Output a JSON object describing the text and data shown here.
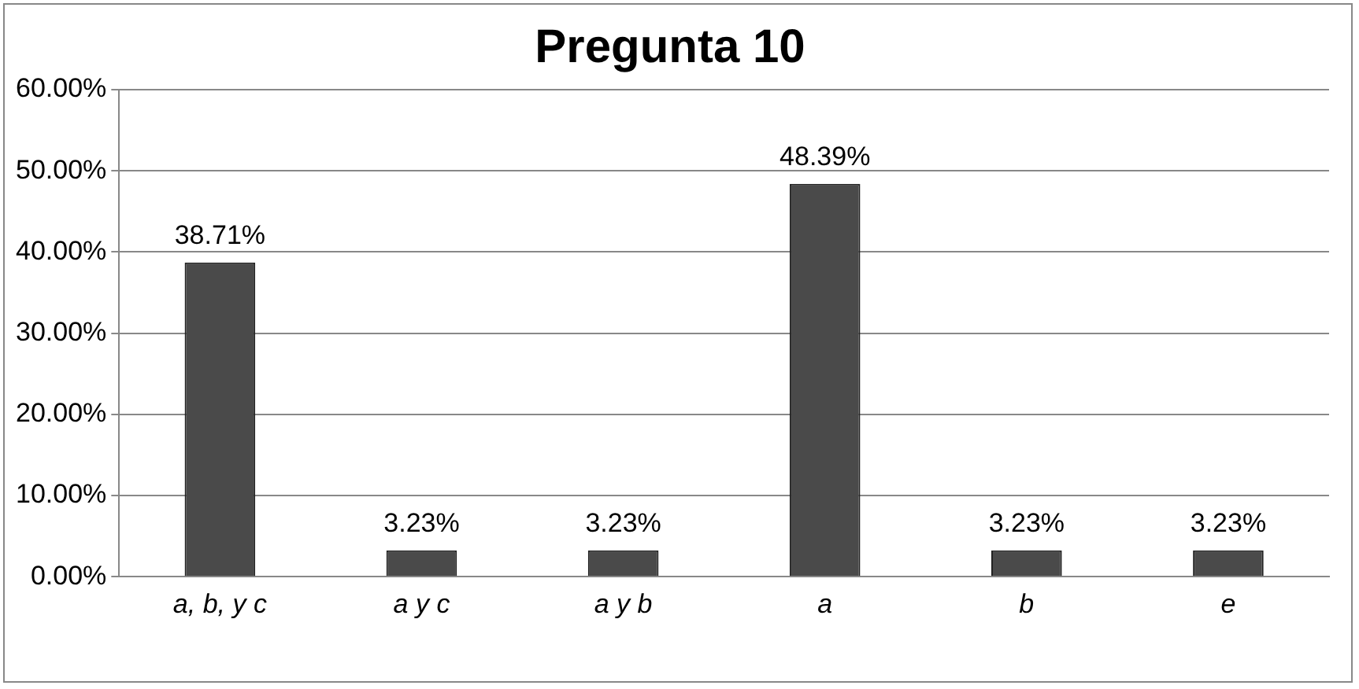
{
  "chart_data": {
    "type": "bar",
    "title": "Pregunta 10",
    "categories": [
      "a, b, y c",
      "a y c",
      "a y b",
      "a",
      "b",
      "e"
    ],
    "values": [
      38.71,
      3.23,
      3.23,
      48.39,
      3.23,
      3.23
    ],
    "value_labels": [
      "38.71%",
      "3.23%",
      "3.23%",
      "48.39%",
      "3.23%",
      "3.23%"
    ],
    "color": "#4a4a4a",
    "ylim": [
      0,
      60
    ],
    "yticks": [
      {
        "value": 0,
        "label": "0.00%"
      },
      {
        "value": 10,
        "label": "10.00%"
      },
      {
        "value": 20,
        "label": "20.00%"
      },
      {
        "value": 30,
        "label": "30.00%"
      },
      {
        "value": 40,
        "label": "40.00%"
      },
      {
        "value": 50,
        "label": "50.00%"
      },
      {
        "value": 60,
        "label": "60.00%"
      }
    ],
    "grid": "y",
    "legend": false
  }
}
